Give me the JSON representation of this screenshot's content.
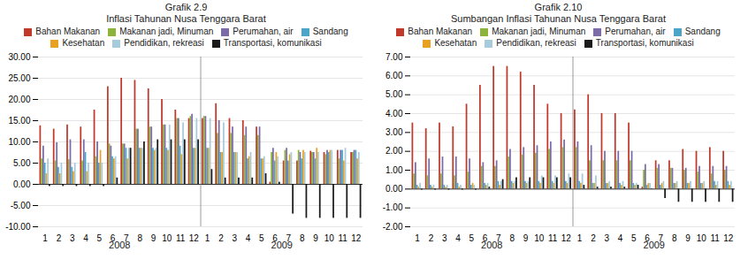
{
  "chart_data": [
    {
      "type": "bar",
      "title": "Grafik  2.9",
      "subtitle": "Inflasi Tahunan Nusa Tenggara Barat",
      "categories": [
        "1",
        "2",
        "3",
        "4",
        "5",
        "6",
        "7",
        "8",
        "9",
        "10",
        "11",
        "12",
        "1",
        "2",
        "3",
        "4",
        "5",
        "6",
        "7",
        "8",
        "9",
        "10",
        "11",
        "12"
      ],
      "annotations": [
        "2008",
        "2009"
      ],
      "series": [
        {
          "name": "Bahan Makanan",
          "color": "#C0392B",
          "values": [
            13.8,
            13.0,
            14.0,
            13.5,
            17.5,
            23.0,
            25.0,
            24.5,
            22.5,
            20.0,
            17.5,
            15.5,
            15.5,
            19.0,
            15.5,
            15.0,
            13.5,
            0.5,
            5.5,
            5.5,
            7.8,
            7.5,
            8.0,
            7.5
          ]
        },
        {
          "name": "Makanan jadi, Minuman",
          "color": "#8DB33A",
          "values": [
            6.0,
            5.5,
            5.8,
            5.5,
            6.5,
            9.5,
            9.5,
            13.0,
            13.5,
            14.0,
            15.5,
            16.0,
            16.0,
            12.0,
            12.0,
            11.5,
            11.5,
            7.5,
            8.0,
            8.0,
            7.5,
            7.0,
            6.0,
            7.5
          ]
        },
        {
          "name": "Perumahan, air",
          "color": "#7B6BA8",
          "values": [
            9.0,
            9.8,
            10.5,
            10.5,
            10.0,
            9.0,
            9.5,
            13.0,
            13.5,
            14.0,
            15.5,
            16.5,
            16.0,
            15.0,
            13.5,
            13.5,
            13.5,
            8.5,
            8.5,
            7.5,
            7.5,
            8.0,
            8.0,
            8.0
          ]
        },
        {
          "name": "Sandang",
          "color": "#4BA5C8",
          "values": [
            5.0,
            4.0,
            4.0,
            7.5,
            5.0,
            6.5,
            8.5,
            8.5,
            8.5,
            8.5,
            9.0,
            8.5,
            8.5,
            7.5,
            7.5,
            6.0,
            6.0,
            5.5,
            5.5,
            6.0,
            6.0,
            7.5,
            8.0,
            8.0
          ]
        },
        {
          "name": "Kesehatan",
          "color": "#E8A020",
          "values": [
            2.5,
            2.5,
            3.0,
            3.0,
            8.0,
            6.0,
            6.0,
            8.5,
            8.0,
            8.0,
            7.0,
            8.5,
            8.5,
            7.5,
            7.5,
            6.5,
            6.0,
            7.5,
            7.0,
            8.0,
            8.5,
            8.0,
            5.5,
            6.0
          ]
        },
        {
          "name": "Pendidikan, rekreasi",
          "color": "#A8CBDC",
          "values": [
            6.0,
            5.0,
            5.0,
            5.0,
            5.0,
            6.5,
            8.5,
            8.5,
            8.5,
            14.0,
            14.5,
            15.5,
            15.5,
            14.5,
            7.5,
            7.5,
            6.5,
            6.5,
            7.5,
            7.5,
            7.5,
            8.0,
            8.5,
            7.5
          ]
        },
        {
          "name": "Transportasi, komunikasi",
          "color": "#1A1A1A",
          "values": [
            -0.5,
            -0.5,
            -0.5,
            -0.5,
            -0.5,
            1.5,
            8.5,
            10.0,
            10.5,
            10.5,
            10.5,
            10.5,
            3.5,
            1.5,
            1.5,
            1.5,
            2.5,
            0.5,
            -7.0,
            -8.0,
            -8.0,
            -8.0,
            -8.0,
            -8.0
          ]
        }
      ],
      "ylim": [
        -10,
        30
      ],
      "yticks": [
        {
          "value": -10,
          "label": "-10.00"
        },
        {
          "value": -5,
          "label": "-5.00"
        },
        {
          "value": 0,
          "label": "0.00"
        },
        {
          "value": 5,
          "label": "5.00"
        },
        {
          "value": 10,
          "label": "10.00"
        },
        {
          "value": 15,
          "label": "15.00"
        },
        {
          "value": 20,
          "label": "20.00"
        },
        {
          "value": 25,
          "label": "25.00"
        },
        {
          "value": 30,
          "label": "30.00"
        }
      ],
      "grid": true,
      "legend": "top"
    },
    {
      "type": "bar",
      "title": "Grafik  2.10",
      "subtitle": "Sumbangan Inflasi Tahunan Nusa Tenggara Barat",
      "categories": [
        "1",
        "2",
        "3",
        "4",
        "5",
        "6",
        "7",
        "8",
        "9",
        "10",
        "11",
        "12",
        "1",
        "2",
        "3",
        "4",
        "5",
        "6",
        "7",
        "8",
        "9",
        "10",
        "11",
        "12"
      ],
      "annotations": [
        "2008",
        "2009"
      ],
      "series": [
        {
          "name": "Bahan Makanan",
          "color": "#C0392B",
          "values": [
            3.5,
            3.2,
            3.5,
            3.3,
            4.5,
            5.5,
            6.5,
            6.5,
            6.2,
            5.5,
            4.5,
            4.0,
            4.2,
            5.0,
            4.0,
            4.0,
            3.5,
            0.1,
            1.5,
            1.5,
            2.1,
            2.0,
            2.2,
            2.0
          ]
        },
        {
          "name": "Makanan jadi, Minuman",
          "color": "#8DB33A",
          "values": [
            0.8,
            0.7,
            0.8,
            0.7,
            0.9,
            1.2,
            1.2,
            1.7,
            1.8,
            1.9,
            2.1,
            2.2,
            2.2,
            1.5,
            1.5,
            1.5,
            1.5,
            1.0,
            1.1,
            1.1,
            1.0,
            0.9,
            0.8,
            1.0
          ]
        },
        {
          "name": "Perumahan, air",
          "color": "#7B6BA8",
          "values": [
            1.4,
            1.6,
            1.7,
            1.7,
            1.6,
            1.4,
            1.5,
            2.1,
            2.2,
            2.3,
            2.5,
            2.6,
            2.5,
            2.3,
            2.0,
            2.0,
            2.0,
            1.3,
            1.3,
            1.1,
            1.1,
            1.2,
            1.2,
            1.2
          ]
        },
        {
          "name": "Sandang",
          "color": "#4BA5C8",
          "values": [
            0.2,
            0.2,
            0.2,
            0.3,
            0.2,
            0.3,
            0.4,
            0.4,
            0.4,
            0.4,
            0.4,
            0.4,
            0.4,
            0.3,
            0.3,
            0.3,
            0.3,
            0.2,
            0.2,
            0.3,
            0.3,
            0.3,
            0.4,
            0.4
          ]
        },
        {
          "name": "Kesehatan",
          "color": "#E8A020",
          "values": [
            0.1,
            0.1,
            0.1,
            0.1,
            0.3,
            0.2,
            0.2,
            0.3,
            0.3,
            0.3,
            0.3,
            0.3,
            0.3,
            0.3,
            0.3,
            0.2,
            0.2,
            0.3,
            0.3,
            0.3,
            0.3,
            0.3,
            0.2,
            0.2
          ]
        },
        {
          "name": "Pendidikan, rekreasi",
          "color": "#A8CBDC",
          "values": [
            0.3,
            0.2,
            0.2,
            0.2,
            0.2,
            0.3,
            0.4,
            0.4,
            0.4,
            0.7,
            0.7,
            0.8,
            0.8,
            0.7,
            0.4,
            0.4,
            0.3,
            0.3,
            0.4,
            0.4,
            0.4,
            0.4,
            0.4,
            0.4
          ]
        },
        {
          "name": "Transportasi, komunikasi",
          "color": "#1A1A1A",
          "values": [
            -0.05,
            -0.05,
            -0.05,
            -0.05,
            -0.05,
            0.1,
            0.5,
            0.6,
            0.6,
            0.6,
            0.6,
            0.6,
            0.2,
            0.1,
            0.1,
            0.1,
            0.2,
            0.02,
            -0.5,
            -0.7,
            -0.7,
            -0.7,
            -0.7,
            -0.7
          ]
        }
      ],
      "ylim": [
        -2.0,
        7.0
      ],
      "yticks": [
        {
          "value": -2,
          "label": "-2.00"
        },
        {
          "value": -1,
          "label": "-1.00"
        },
        {
          "value": 0,
          "label": "0.00"
        },
        {
          "value": 1,
          "label": "1.00"
        },
        {
          "value": 2,
          "label": "2.00"
        },
        {
          "value": 3,
          "label": "3.00"
        },
        {
          "value": 4,
          "label": "4.00"
        },
        {
          "value": 5,
          "label": "5.00"
        },
        {
          "value": 6,
          "label": "6.00"
        },
        {
          "value": 7,
          "label": "7.00"
        }
      ],
      "grid": true,
      "legend": "top"
    }
  ]
}
